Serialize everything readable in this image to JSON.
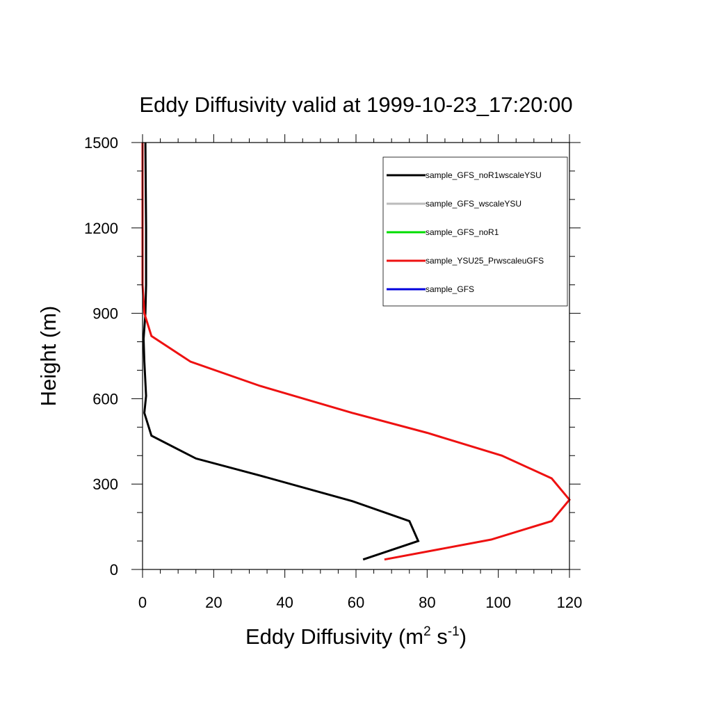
{
  "chart_data": {
    "type": "line",
    "title": "Eddy Diffusivity valid at 1999-10-23_17:20:00",
    "xlabel": {
      "main": "Eddy Diffusivity (m",
      "sup1": "2",
      "mid": " s",
      "sup2": "-1",
      "end": ")"
    },
    "ylabel": "Height (m)",
    "xlim": [
      0,
      120
    ],
    "ylim": [
      0,
      1500
    ],
    "xticks": [
      0,
      20,
      40,
      60,
      80,
      100,
      120
    ],
    "xtick_labels": [
      "0",
      "20",
      "40",
      "60",
      "80",
      "100",
      "120"
    ],
    "yticks": [
      0,
      300,
      600,
      900,
      1200,
      1500
    ],
    "ytick_labels": [
      "0",
      "300",
      "600",
      "900",
      "1200",
      "1500"
    ],
    "grid": false,
    "legend_position": "top-right",
    "series": [
      {
        "name": "sample_GFS_noR1wscaleYSU",
        "color": "#000000",
        "x": [
          62,
          77.5,
          75,
          59,
          33,
          15,
          2.5,
          0.5,
          1,
          0.5,
          0.3,
          0.8,
          1,
          1,
          0.8
        ],
        "y": [
          35,
          100,
          170,
          240,
          330,
          390,
          470,
          550,
          610,
          730,
          810,
          900,
          1000,
          1200,
          1500
        ]
      },
      {
        "name": "sample_GFS_wscaleYSU",
        "color": "#bbbbbb",
        "x": [],
        "y": []
      },
      {
        "name": "sample_GFS_noR1",
        "color": "#00dd00",
        "x": [],
        "y": []
      },
      {
        "name": "sample_YSU25_PrwscaleuGFS",
        "color": "#ee1111",
        "x": [
          68,
          98,
          115,
          120,
          115,
          101,
          80,
          59,
          33,
          13.5,
          2.5,
          0.5,
          0,
          0,
          0
        ],
        "y": [
          35,
          105,
          170,
          245,
          320,
          400,
          480,
          550,
          645,
          730,
          820,
          900,
          1000,
          1200,
          1500
        ]
      },
      {
        "name": "sample_GFS",
        "color": "#0000dd",
        "x": [],
        "y": []
      }
    ]
  }
}
